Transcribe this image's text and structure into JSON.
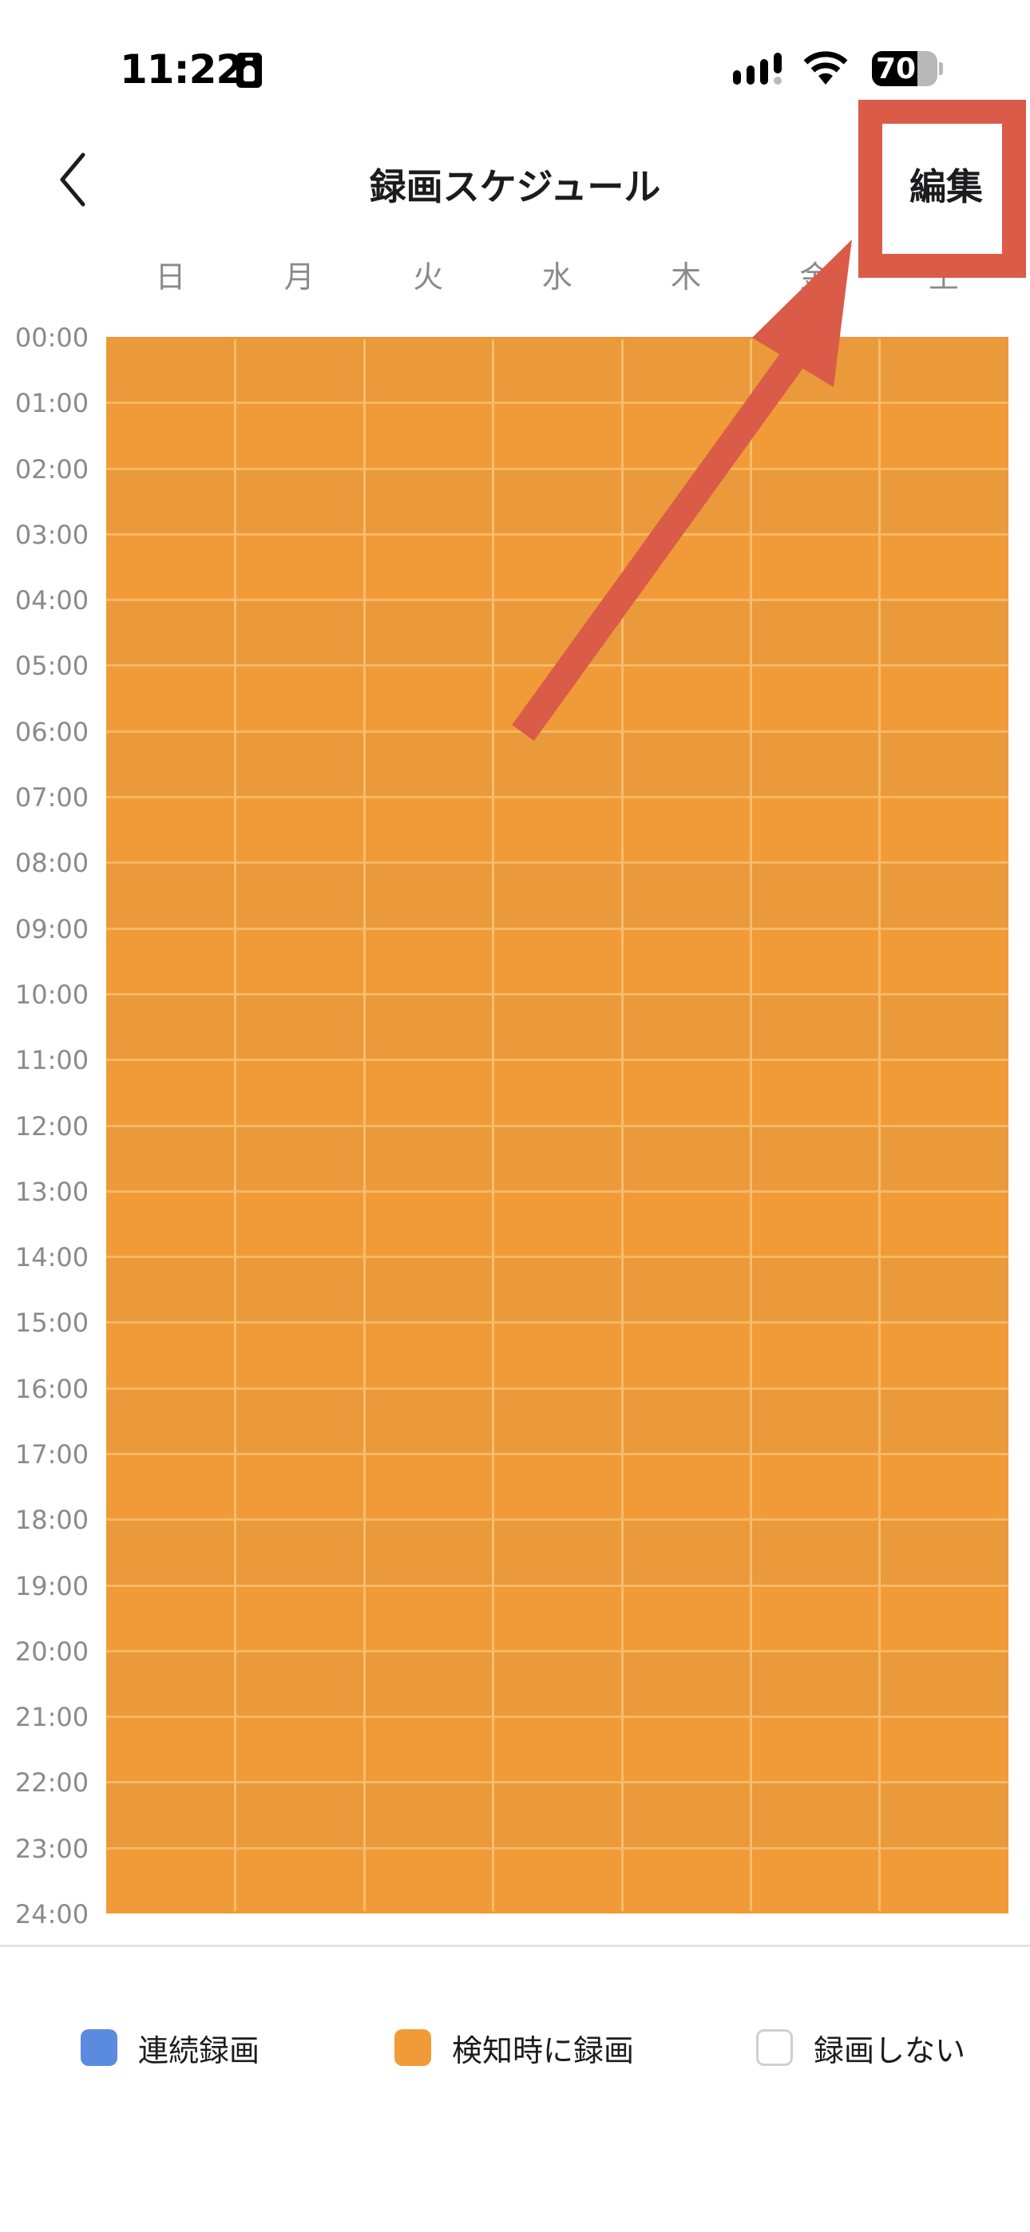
{
  "status_bar": {
    "time": "11:22",
    "battery_percent": "70",
    "icons": [
      "id-card-icon",
      "cellular-signal-icon",
      "wifi-icon",
      "battery-icon"
    ]
  },
  "nav": {
    "title": "録画スケジュール",
    "edit_label": "編集",
    "back_icon": "chevron-left-icon"
  },
  "days": [
    "日",
    "月",
    "火",
    "水",
    "木",
    "金",
    "土"
  ],
  "times": [
    "00:00",
    "01:00",
    "02:00",
    "03:00",
    "04:00",
    "05:00",
    "06:00",
    "07:00",
    "08:00",
    "09:00",
    "10:00",
    "11:00",
    "12:00",
    "13:00",
    "14:00",
    "15:00",
    "16:00",
    "17:00",
    "18:00",
    "19:00",
    "20:00",
    "21:00",
    "22:00",
    "23:00",
    "24:00"
  ],
  "schedule": [
    {
      "day": "日",
      "segments": [
        {
          "start": "00:00",
          "end": "24:00",
          "mode": "detect"
        }
      ]
    },
    {
      "day": "月",
      "segments": [
        {
          "start": "00:00",
          "end": "24:00",
          "mode": "detect"
        }
      ]
    },
    {
      "day": "火",
      "segments": [
        {
          "start": "00:00",
          "end": "24:00",
          "mode": "detect"
        }
      ]
    },
    {
      "day": "水",
      "segments": [
        {
          "start": "00:00",
          "end": "24:00",
          "mode": "detect"
        }
      ]
    },
    {
      "day": "木",
      "segments": [
        {
          "start": "00:00",
          "end": "24:00",
          "mode": "detect"
        }
      ]
    },
    {
      "day": "金",
      "segments": [
        {
          "start": "00:00",
          "end": "24:00",
          "mode": "detect"
        }
      ]
    },
    {
      "day": "土",
      "segments": [
        {
          "start": "00:00",
          "end": "24:00",
          "mode": "detect"
        }
      ]
    }
  ],
  "legend": [
    {
      "mode": "continuous",
      "label": "連続録画",
      "color": "#5B8BDF"
    },
    {
      "mode": "detect",
      "label": "検知時に録画",
      "color": "#F19B38"
    },
    {
      "mode": "none",
      "label": "録画しない",
      "color": "#FFFFFF"
    }
  ],
  "colors": {
    "detect_shade_alt": "#EA9A3A",
    "grid_line": "#F7B864",
    "annotation": "#DA5B48"
  },
  "annotation": {
    "type": "highlight-box-with-arrow",
    "target": "編集"
  }
}
